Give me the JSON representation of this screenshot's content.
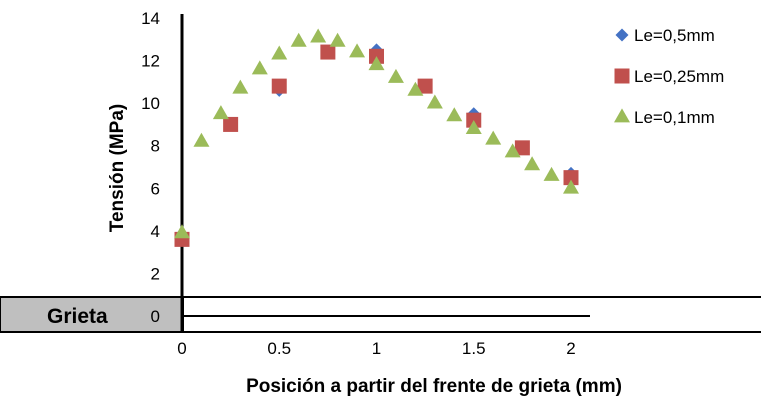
{
  "chart_data": {
    "type": "scatter",
    "xlabel": "Posición a partir del frente de grieta (mm)",
    "ylabel": "Tensión (MPa)",
    "xlim": [
      0,
      2
    ],
    "ylim": [
      0,
      14
    ],
    "x_ticks": [
      "0",
      "0.5",
      "1",
      "1.5",
      "2"
    ],
    "y_ticks": [
      "0",
      "2",
      "4",
      "6",
      "8",
      "10",
      "12",
      "14"
    ],
    "grid": false,
    "legend": "right",
    "annotation": "Grieta",
    "series": [
      {
        "name": "Le=0,5mm",
        "marker": "diamond",
        "color": "#4472C4",
        "points": [
          [
            0,
            3.7
          ],
          [
            0.5,
            10.6
          ],
          [
            1,
            12.5
          ],
          [
            1.5,
            9.5
          ],
          [
            2,
            6.7
          ]
        ]
      },
      {
        "name": "Le=0,25mm",
        "marker": "square",
        "color": "#C0504D",
        "points": [
          [
            0,
            3.6
          ],
          [
            0.25,
            9.0
          ],
          [
            0.5,
            10.8
          ],
          [
            0.75,
            12.4
          ],
          [
            1,
            12.2
          ],
          [
            1.25,
            10.8
          ],
          [
            1.5,
            9.2
          ],
          [
            1.75,
            7.9
          ],
          [
            2,
            6.5
          ]
        ]
      },
      {
        "name": "Le=0,1mm",
        "marker": "triangle",
        "color": "#9BBB59",
        "points": [
          [
            0,
            3.9
          ],
          [
            0.1,
            8.2
          ],
          [
            0.2,
            9.5
          ],
          [
            0.3,
            10.7
          ],
          [
            0.4,
            11.6
          ],
          [
            0.5,
            12.3
          ],
          [
            0.6,
            12.9
          ],
          [
            0.7,
            13.1
          ],
          [
            0.8,
            12.9
          ],
          [
            0.9,
            12.4
          ],
          [
            1,
            11.8
          ],
          [
            1.1,
            11.2
          ],
          [
            1.2,
            10.6
          ],
          [
            1.3,
            10.0
          ],
          [
            1.4,
            9.4
          ],
          [
            1.5,
            8.8
          ],
          [
            1.6,
            8.3
          ],
          [
            1.7,
            7.7
          ],
          [
            1.8,
            7.1
          ],
          [
            1.9,
            6.6
          ],
          [
            2,
            6.0
          ]
        ]
      }
    ]
  }
}
